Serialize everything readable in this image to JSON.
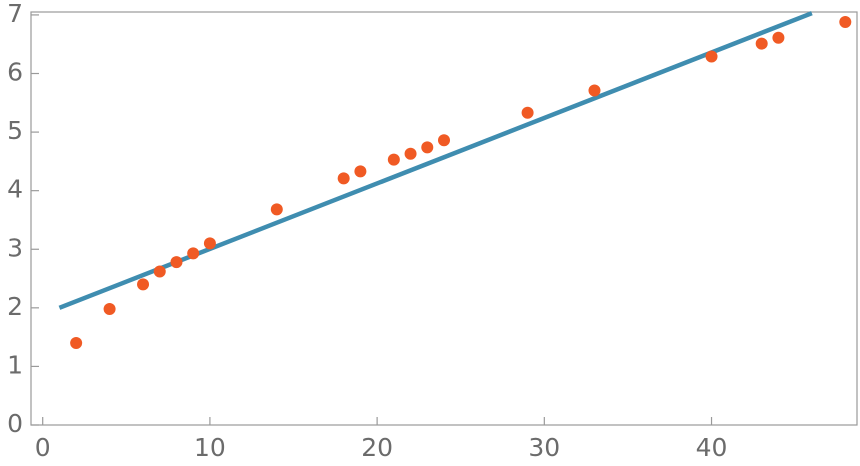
{
  "chart_data": {
    "type": "scatter",
    "xlim": [
      -0.7,
      48.7
    ],
    "xticks": [
      0,
      10,
      20,
      30,
      40
    ],
    "ylim": [
      0,
      7.05
    ],
    "yticks": [
      0,
      1,
      2,
      3,
      4,
      5,
      6,
      7
    ],
    "series": [
      {
        "kind": "line",
        "color": "#3f8db0",
        "x": [
          1,
          46
        ],
        "values": [
          2.0,
          7.03
        ]
      },
      {
        "kind": "points",
        "color": "#f05a24",
        "x": [
          2,
          4,
          6,
          7,
          8,
          9,
          10,
          14,
          18,
          19,
          21,
          22,
          23,
          24,
          29,
          33,
          40,
          43,
          44,
          48
        ],
        "values": [
          1.4,
          1.98,
          2.4,
          2.62,
          2.78,
          2.93,
          3.1,
          3.68,
          4.21,
          4.33,
          4.53,
          4.63,
          4.74,
          4.86,
          5.33,
          5.71,
          6.29,
          6.51,
          6.61,
          6.88
        ]
      }
    ]
  }
}
